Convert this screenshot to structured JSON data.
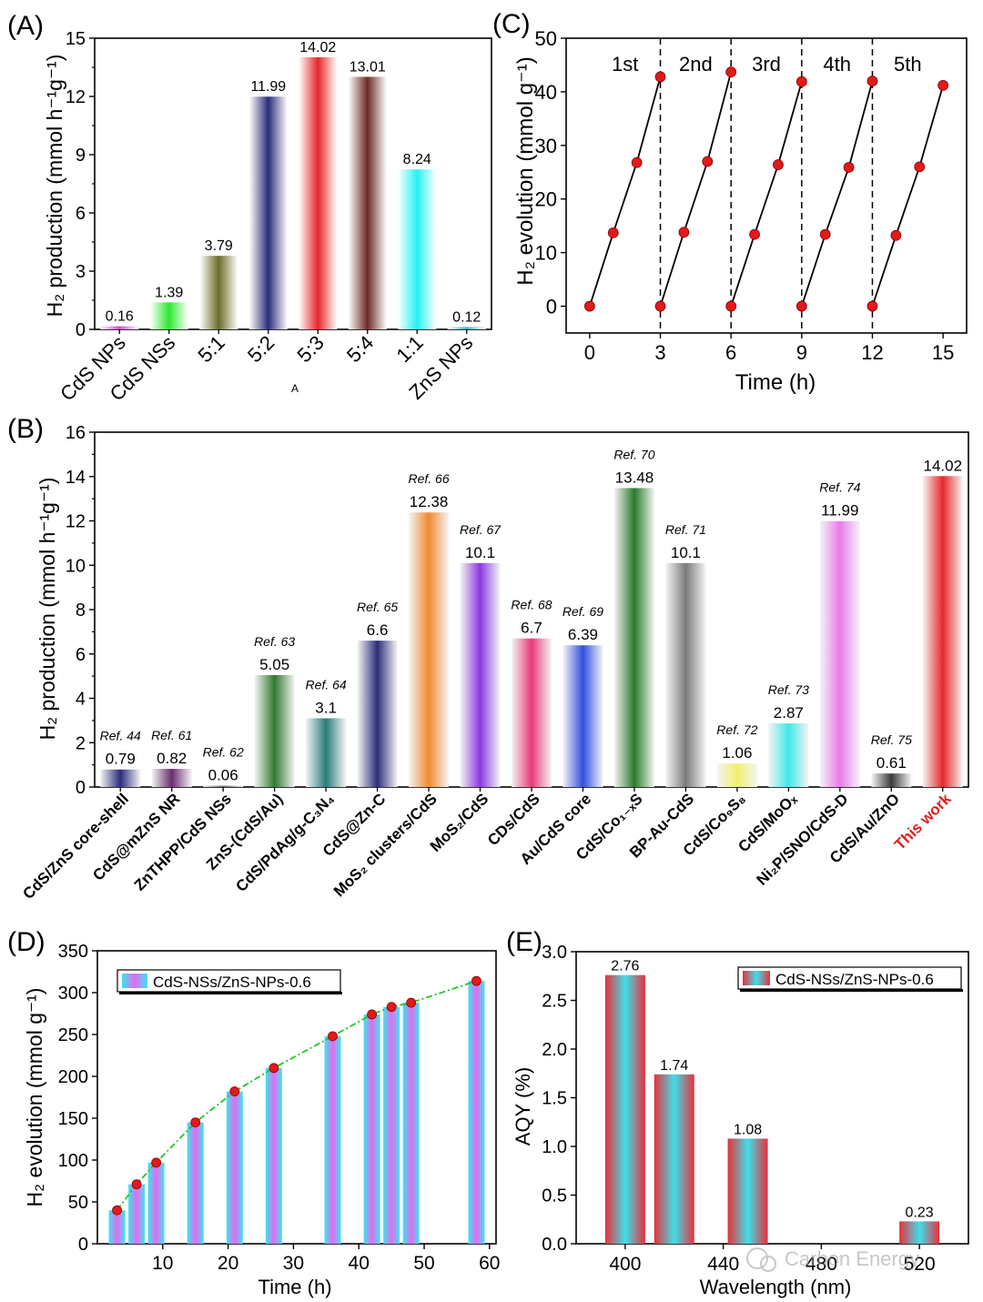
{
  "watermark": "Carbon Energy",
  "chart_data": [
    {
      "id": "A",
      "type": "bar",
      "panel_label": "(A)",
      "ylabel": "H₂ production (mmol h⁻¹g⁻¹)",
      "xlabel": "A",
      "ylim": [
        0,
        15
      ],
      "yticks": [
        "0",
        "3",
        "6",
        "9",
        "12",
        "15"
      ],
      "categories": [
        "CdS NPs",
        "CdS NSs",
        "5:1",
        "5:2",
        "5:3",
        "5:4",
        "1:1",
        "ZnS NPs"
      ],
      "values": [
        0.16,
        1.39,
        3.79,
        11.99,
        14.02,
        13.01,
        8.24,
        0.12
      ],
      "value_labels": [
        "0.16",
        "1.39",
        "3.79",
        "11.99",
        "14.02",
        "13.01",
        "8.24",
        "0.12"
      ],
      "colors": [
        "#d54bd6",
        "#2ee82e",
        "#6b6b2a",
        "#2b2d7a",
        "#e8262a",
        "#6b2a26",
        "#25f2f2",
        "#35b7c2"
      ]
    },
    {
      "id": "C",
      "type": "line",
      "panel_label": "(C)",
      "ylabel": "H₂ evolution (mmol g⁻¹)",
      "xlabel": "Time (h)",
      "xlim": [
        -1,
        16
      ],
      "ylim": [
        -5,
        50
      ],
      "xticks": [
        "0",
        "3",
        "6",
        "9",
        "12",
        "15"
      ],
      "yticks": [
        "0",
        "10",
        "20",
        "30",
        "40",
        "50"
      ],
      "cycle_labels": [
        "1st",
        "2nd",
        "3rd",
        "4th",
        "5th"
      ],
      "cycle_dividers": [
        3,
        6,
        9,
        12
      ],
      "series": [
        {
          "x": [
            0,
            1,
            2,
            3
          ],
          "y": [
            0,
            13.7,
            26.8,
            42.8
          ]
        },
        {
          "x": [
            3,
            4,
            5,
            6
          ],
          "y": [
            0,
            13.8,
            27.0,
            43.7
          ]
        },
        {
          "x": [
            6,
            7,
            8,
            9
          ],
          "y": [
            0,
            13.4,
            26.4,
            41.9
          ]
        },
        {
          "x": [
            9,
            10,
            11,
            12
          ],
          "y": [
            0,
            13.4,
            25.9,
            42.0
          ]
        },
        {
          "x": [
            12,
            13,
            14,
            15
          ],
          "y": [
            0,
            13.2,
            26.0,
            41.2
          ]
        }
      ]
    },
    {
      "id": "B",
      "type": "bar",
      "panel_label": "(B)",
      "ylabel": "H₂ production (mmol h⁻¹g⁻¹)",
      "ylim": [
        0,
        16
      ],
      "yticks": [
        "0",
        "2",
        "4",
        "6",
        "8",
        "10",
        "12",
        "14",
        "16"
      ],
      "categories": [
        "CdS/ZnS core-shell",
        "CdS@mZnS NR",
        "ZnTHPP/CdS NSs",
        "ZnS-(CdS/Au)",
        "CdS/PdAg/g-C₃N₄",
        "CdS@Zn-C",
        "MoS₂ clusters/CdS",
        "MoS₂/CdS",
        "CDs/CdS",
        "Au/CdS  core",
        "CdS/Co₁₋ₓS",
        "BP-Au-CdS",
        "CdS/Co₉S₈",
        "CdS/MoOₓ",
        "Ni₂P/SNO/CdS-D",
        "CdS/Au/ZnO",
        "This work"
      ],
      "values": [
        0.79,
        0.82,
        0.06,
        5.05,
        3.1,
        6.6,
        12.38,
        10.1,
        6.7,
        6.39,
        13.48,
        10.1,
        1.06,
        2.87,
        11.99,
        0.61,
        14.02
      ],
      "value_labels": [
        "0.79",
        "0.82",
        "0.06",
        "5.05",
        "3.1",
        "6.6",
        "12.38",
        "10.1",
        "6.7",
        "6.39",
        "13.48",
        "10.1",
        "1.06",
        "2.87",
        "11.99",
        "0.61",
        "14.02"
      ],
      "refs": [
        "Ref. 44",
        "Ref. 61",
        "Ref. 62",
        "Ref. 63",
        "Ref. 64",
        "Ref. 65",
        "Ref. 66",
        "Ref. 67",
        "Ref. 68",
        "Ref. 69",
        "Ref. 70",
        "Ref. 71",
        "Ref. 72",
        "Ref. 73",
        "Ref. 74",
        "Ref. 75",
        ""
      ],
      "colors": [
        "#2b2d7a",
        "#6a2d6e",
        "#6a6a6a",
        "#2f7a2f",
        "#2a7a7a",
        "#2b2d7a",
        "#f08a30",
        "#8a3ae0",
        "#e83a78",
        "#3050e0",
        "#2a7a2a",
        "#7a7a7a",
        "#f0f070",
        "#40e8e8",
        "#ea7aea",
        "#3a3a3a",
        "#e8262a"
      ],
      "highlight_color": "#e02020"
    },
    {
      "id": "D",
      "type": "bar",
      "panel_label": "(D)",
      "ylabel": "H₂ evolution (mmol g⁻¹)",
      "xlabel": "Time (h)",
      "xlim": [
        0,
        61
      ],
      "ylim": [
        0,
        350
      ],
      "xticks": [
        "10",
        "20",
        "30",
        "40",
        "50",
        "60"
      ],
      "yticks": [
        "0",
        "50",
        "100",
        "150",
        "200",
        "250",
        "300",
        "350"
      ],
      "legend": "CdS-NSs/ZnS-NPs-0.6",
      "x": [
        3,
        6,
        9,
        15,
        21,
        27,
        36,
        42,
        45,
        48,
        58
      ],
      "values": [
        40,
        71,
        97,
        145,
        182,
        210,
        248,
        274,
        283,
        288,
        314
      ]
    },
    {
      "id": "E",
      "type": "bar",
      "panel_label": "(E)",
      "ylabel": "AQY (%)",
      "xlabel": "Wavelength (nm)",
      "xlim": [
        380,
        540
      ],
      "ylim": [
        0,
        3.0
      ],
      "xticks": [
        "400",
        "440",
        "480",
        "520"
      ],
      "yticks": [
        "0.0",
        "0.5",
        "1.0",
        "1.5",
        "2.0",
        "2.5",
        "3.0"
      ],
      "legend": "CdS-NSs/ZnS-NPs-0.6",
      "x": [
        400,
        420,
        450,
        520
      ],
      "values": [
        2.76,
        1.74,
        1.08,
        0.23
      ],
      "value_labels": [
        "2.76",
        "1.74",
        "1.08",
        "0.23"
      ]
    }
  ]
}
